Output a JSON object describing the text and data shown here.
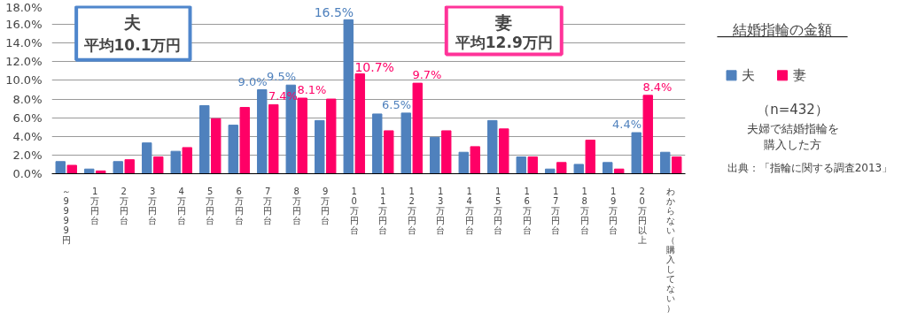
{
  "chart_data": {
    "type": "bar",
    "title": "結婚指輪の金額",
    "categories": [
      "～9999円",
      "1万円台",
      "2万円台",
      "3万円台",
      "4万円台",
      "5万円台",
      "6万円台",
      "7万円台",
      "8万円台",
      "9万円台",
      "10万円台",
      "11万円台",
      "12万円台",
      "13万円台",
      "14万円台",
      "15万円台",
      "16万円台",
      "17万円台",
      "18万円台",
      "19万円台",
      "20万円以上",
      "わからない（購入してない）"
    ],
    "series": [
      {
        "name": "夫",
        "color": "#4f81bd",
        "values": [
          1.3,
          0.5,
          1.3,
          3.3,
          2.4,
          7.3,
          5.2,
          9.0,
          9.5,
          5.7,
          16.5,
          6.4,
          6.5,
          3.9,
          2.3,
          5.7,
          1.8,
          0.5,
          1.0,
          1.2,
          4.4,
          2.3
        ],
        "value_labels": [
          null,
          null,
          null,
          null,
          null,
          null,
          null,
          "9.0%",
          "9.5%",
          null,
          "16.5%",
          null,
          "6.5%",
          null,
          null,
          null,
          null,
          null,
          null,
          null,
          "4.4%",
          null
        ]
      },
      {
        "name": "妻",
        "color": "#ff0066",
        "values": [
          0.9,
          0.3,
          1.5,
          1.8,
          2.8,
          5.9,
          7.1,
          7.4,
          8.1,
          8.0,
          10.7,
          4.6,
          9.7,
          4.6,
          2.9,
          4.8,
          1.8,
          1.2,
          3.6,
          0.5,
          8.4,
          1.8
        ],
        "value_labels": [
          null,
          null,
          null,
          null,
          null,
          null,
          null,
          "7.4%",
          "8.1%",
          null,
          "10.7%",
          null,
          "9.7%",
          null,
          null,
          null,
          null,
          null,
          null,
          null,
          "8.4%",
          null
        ]
      }
    ],
    "ylim": [
      0,
      18
    ],
    "yticks": [
      {
        "value": 0,
        "label": "0.0%"
      },
      {
        "value": 2,
        "label": "2.0%"
      },
      {
        "value": 4,
        "label": "4.0%"
      },
      {
        "value": 6,
        "label": "6.0%"
      },
      {
        "value": 8,
        "label": "8.0%"
      },
      {
        "value": 10,
        "label": "10.0%"
      },
      {
        "value": 12,
        "label": "12.0%"
      },
      {
        "value": 14,
        "label": "14.0%"
      },
      {
        "value": 16,
        "label": "16.0%"
      },
      {
        "value": 18,
        "label": "18.0%"
      }
    ],
    "grid": "y",
    "legend": "right",
    "annotations": [
      "夫",
      "平均10.1万円",
      "妻",
      "平均12.9万円",
      "（n=432）",
      "夫婦で結婚指輪を購入した方",
      "出典：「指輪に関する調査2013」"
    ]
  }
}
